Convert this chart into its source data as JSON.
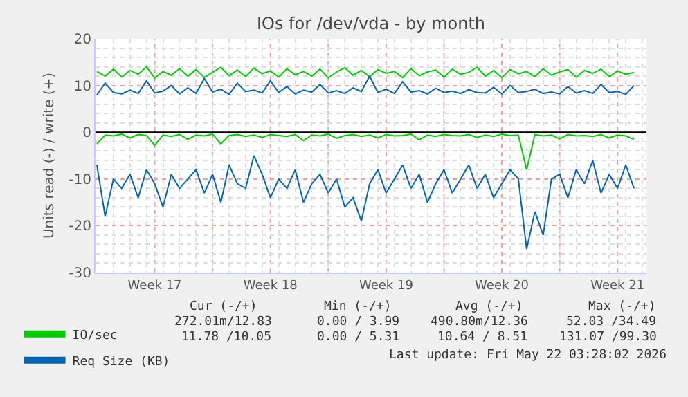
{
  "chart_data": {
    "type": "line",
    "title": "IOs for /dev/vda - by month",
    "ylabel": "Units read (-) / write (+)",
    "x": [
      "2026-04-20T00:00",
      "2026-04-20T12:00",
      "2026-04-21T00:00",
      "2026-04-21T12:00",
      "2026-04-22T00:00",
      "2026-04-22T12:00",
      "2026-04-23T00:00",
      "2026-04-23T12:00",
      "2026-04-24T00:00",
      "2026-04-24T12:00",
      "2026-04-25T00:00",
      "2026-04-25T12:00",
      "2026-04-26T00:00",
      "2026-04-26T12:00",
      "2026-04-27T00:00",
      "2026-04-27T12:00",
      "2026-04-28T00:00",
      "2026-04-28T12:00",
      "2026-04-29T00:00",
      "2026-04-29T12:00",
      "2026-04-30T00:00",
      "2026-04-30T12:00",
      "2026-05-01T00:00",
      "2026-05-01T12:00",
      "2026-05-02T00:00",
      "2026-05-02T12:00",
      "2026-05-03T00:00",
      "2026-05-03T12:00",
      "2026-05-04T00:00",
      "2026-05-04T12:00",
      "2026-05-05T00:00",
      "2026-05-05T12:00",
      "2026-05-06T00:00",
      "2026-05-06T12:00",
      "2026-05-07T00:00",
      "2026-05-07T12:00",
      "2026-05-08T00:00",
      "2026-05-08T12:00",
      "2026-05-09T00:00",
      "2026-05-09T12:00",
      "2026-05-10T00:00",
      "2026-05-10T12:00",
      "2026-05-11T00:00",
      "2026-05-11T12:00",
      "2026-05-12T00:00",
      "2026-05-12T12:00",
      "2026-05-13T00:00",
      "2026-05-13T12:00",
      "2026-05-14T00:00",
      "2026-05-14T12:00",
      "2026-05-15T00:00",
      "2026-05-15T12:00",
      "2026-05-16T00:00",
      "2026-05-16T12:00",
      "2026-05-17T00:00",
      "2026-05-17T12:00",
      "2026-05-18T00:00",
      "2026-05-18T12:00",
      "2026-05-19T00:00",
      "2026-05-19T12:00",
      "2026-05-20T00:00",
      "2026-05-20T12:00",
      "2026-05-21T00:00",
      "2026-05-21T12:00",
      "2026-05-22T00:00",
      "2026-05-22T12:00"
    ],
    "series": [
      {
        "name": "IO/sec",
        "color": "#00cc00",
        "values": [
          13,
          12,
          13.5,
          11.8,
          13.2,
          12.4,
          14,
          11.6,
          13,
          12.2,
          13.6,
          12,
          13.4,
          11.7,
          12.8,
          13.9,
          12.1,
          13.3,
          11.9,
          13.7,
          12.5,
          13.1,
          11.8,
          13.6,
          12.3,
          13,
          12,
          13.5,
          11.6,
          12.9,
          13.8,
          12.2,
          13.2,
          11.9,
          13.4,
          12.6,
          13,
          11.7,
          13.6,
          12.1,
          12.9,
          13.3,
          11.8,
          13.5,
          12.4,
          12.8,
          13.9,
          12,
          13.2,
          11.7,
          13.4,
          12.5,
          13,
          11.9,
          13.6,
          12.2,
          12.9,
          13.4,
          11.8,
          13.2,
          12.6,
          13.5,
          11.9,
          13.1,
          12.4,
          12.8
        ]
      },
      {
        "color": "#00cc00",
        "values": [
          -2.5,
          -0.6,
          -0.8,
          -0.4,
          -1.2,
          -0.5,
          -0.7,
          -2.8,
          -0.6,
          -0.9,
          -0.5,
          -1.5,
          -0.6,
          -0.8,
          -0.4,
          -2.5,
          -0.7,
          -0.5,
          -0.9,
          -0.6,
          -1.1,
          -0.5,
          -0.7,
          -0.9,
          -0.5,
          -1.8,
          -0.6,
          -0.8,
          -0.4,
          -1.3,
          -0.7,
          -0.5,
          -0.9,
          -0.6,
          -1.2,
          -0.5,
          -0.8,
          -0.7,
          -0.4,
          -1.6,
          -0.6,
          -0.9,
          -0.5,
          -0.7,
          -0.8,
          -0.5,
          -1.1,
          -0.6,
          -0.9,
          -0.4,
          -0.7,
          -0.6,
          -8,
          -0.5,
          -0.8,
          -0.6,
          -1.4,
          -0.5,
          -0.8,
          -0.7,
          -0.9,
          -0.5,
          -1.2,
          -0.6,
          -0.8,
          -1.5
        ]
      },
      {
        "name": "Req Size (KB)",
        "color": "#0066b3",
        "values": [
          8,
          10.5,
          8.5,
          8.2,
          9,
          8.3,
          11,
          8.4,
          8.8,
          10,
          8.2,
          9.5,
          8.3,
          11.5,
          8.6,
          9.2,
          8.1,
          10.5,
          8.7,
          9,
          8.4,
          11,
          8.5,
          9.8,
          8.2,
          9,
          8.6,
          10.2,
          8.4,
          8.9,
          8.3,
          9.5,
          8.7,
          12,
          8.5,
          9.2,
          8.3,
          10.8,
          8.6,
          8.9,
          8.2,
          9.4,
          8.5,
          8.8,
          8.3,
          9.1,
          8.5,
          8.4,
          9.6,
          8.2,
          10,
          8.5,
          8.7,
          9.2,
          8.3,
          8.6,
          8.2,
          9.8,
          8.4,
          8.9,
          8.3,
          10.2,
          8.5,
          8.7,
          8.1,
          10
        ]
      },
      {
        "color": "#0066b3",
        "values": [
          -7,
          -18,
          -10,
          -12,
          -9,
          -14,
          -8,
          -11,
          -16,
          -9,
          -12,
          -10,
          -8,
          -13,
          -9,
          -15,
          -7,
          -11,
          -12,
          -5,
          -9,
          -14,
          -10,
          -12,
          -8,
          -15,
          -11,
          -9,
          -13,
          -10,
          -16,
          -14,
          -19,
          -11,
          -8,
          -13,
          -10,
          -7,
          -12,
          -9,
          -15,
          -11,
          -8,
          -13,
          -10,
          -7,
          -12,
          -9,
          -14,
          -11,
          -8,
          -10,
          -25,
          -17,
          -22,
          -10,
          -9,
          -14,
          -8,
          -11,
          -6,
          -13,
          -9,
          -12,
          -7,
          -12
        ]
      }
    ],
    "xlim": [
      "2026-04-19T22:00",
      "2026-05-23T06:00"
    ],
    "xticks": [
      {
        "value": "2026-04-23T12:00",
        "label": "Week 17"
      },
      {
        "value": "2026-04-27T00:00",
        "label": null
      },
      {
        "value": "2026-04-30T12:00",
        "label": "Week 18"
      },
      {
        "value": "2026-05-04T00:00",
        "label": null
      },
      {
        "value": "2026-05-07T12:00",
        "label": "Week 19"
      },
      {
        "value": "2026-05-11T00:00",
        "label": null
      },
      {
        "value": "2026-05-14T12:00",
        "label": "Week 20"
      },
      {
        "value": "2026-05-18T00:00",
        "label": null
      },
      {
        "value": "2026-05-21T12:00",
        "label": "Week 21"
      }
    ],
    "ylim": [
      -30,
      20
    ],
    "yticks": [
      -30,
      -20,
      -10,
      0,
      10,
      20
    ],
    "ref_lines": [
      {
        "axis": "y",
        "value": 0,
        "color": "#000000"
      }
    ],
    "grid": true,
    "legend": "bottom left",
    "marker": "none",
    "line_style": "solid",
    "annotations": [
      "Cur (-/+)",
      "Min (-/+)",
      "Avg (-/+)",
      "Max (-/+)",
      "272.01m/12.83",
      "0.00 / 3.99",
      "490.80m/12.36",
      "52.03 /34.49",
      "11.78 /10.05",
      "0.00 / 5.31",
      "10.64 / 8.51",
      "131.07 /99.30",
      "Last update: Fri May 22 03:28:02 2026"
    ]
  }
}
